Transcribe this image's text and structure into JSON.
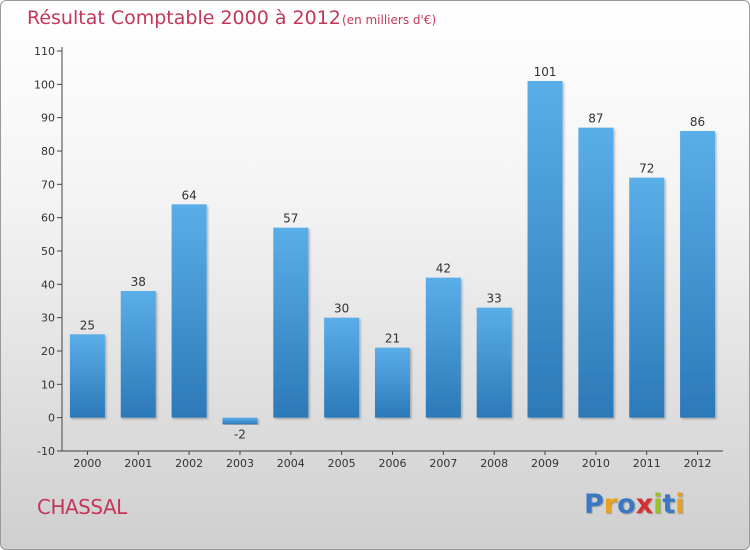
{
  "chart_data": {
    "type": "bar",
    "title": "Résultat Comptable 2000 à 2012",
    "subtitle": "(en milliers d'€)",
    "categories": [
      "2000",
      "2001",
      "2002",
      "2003",
      "2004",
      "2005",
      "2006",
      "2007",
      "2008",
      "2009",
      "2010",
      "2011",
      "2012"
    ],
    "values": [
      25,
      38,
      64,
      -2,
      57,
      30,
      21,
      42,
      33,
      101,
      87,
      72,
      86
    ],
    "ylim": [
      -10,
      110
    ],
    "yticks": [
      -10,
      0,
      10,
      20,
      30,
      40,
      50,
      60,
      70,
      80,
      90,
      100,
      110
    ],
    "grid": false,
    "bar_color": "#3b8fd3",
    "label_color": "#333333"
  },
  "footer": {
    "commune": "CHASSAL",
    "logo_letters": [
      "P",
      "r",
      "o",
      "x",
      "i",
      "t",
      "i"
    ],
    "logo_colors": [
      "#3a78c4",
      "#e8a020",
      "#3a78c4",
      "#d63030",
      "#9ac21e",
      "#3a78c4",
      "#e8a020"
    ]
  },
  "colors": {
    "title": "#c2375a",
    "axis": "#333333"
  }
}
